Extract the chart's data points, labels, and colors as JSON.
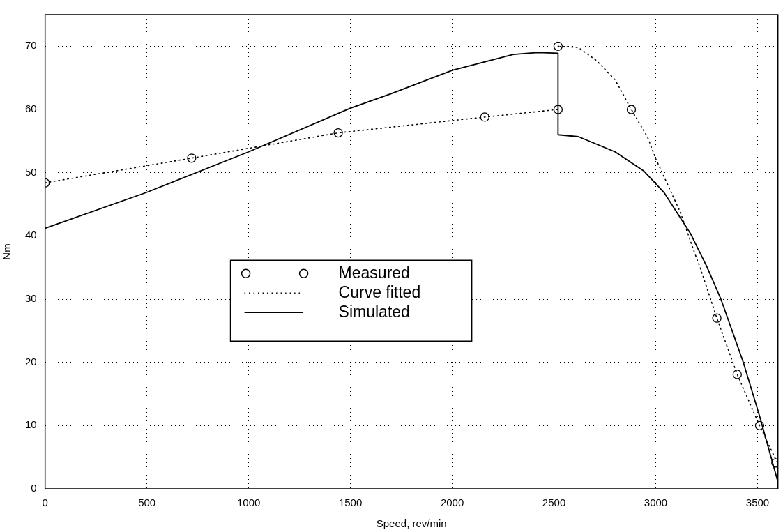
{
  "chart_data": {
    "type": "line",
    "xlabel": "Speed, rev/min",
    "ylabel": "Nm",
    "xlim": [
      0,
      3600
    ],
    "ylim": [
      0,
      75
    ],
    "xticks": [
      0,
      500,
      1000,
      1500,
      2000,
      2500,
      3000,
      3500
    ],
    "yticks": [
      0,
      10,
      20,
      30,
      40,
      50,
      60,
      70
    ],
    "grid": true,
    "legend": "center",
    "series": [
      {
        "name": "Measured",
        "type": "scatter",
        "marker": "circle",
        "color": "#000000",
        "x": [
          0,
          720,
          1440,
          2160,
          2520,
          2520,
          2880,
          3300,
          3400,
          3510,
          3590
        ],
        "values": [
          48.4,
          52.3,
          56.3,
          58.8,
          60,
          70,
          60,
          27,
          18.1,
          10,
          4.1
        ]
      },
      {
        "name": "Curve fitted",
        "type": "line",
        "marker": "none",
        "line_style": "dotted",
        "color": "#000000",
        "x": [
          0,
          720,
          1440,
          2160,
          2520,
          null,
          2520,
          2620,
          2710,
          2800,
          2880,
          2960,
          3000,
          3050,
          3120,
          3190,
          3220,
          3300,
          3400,
          3510,
          3590,
          3600
        ],
        "values": [
          48.4,
          52.3,
          56.3,
          58.8,
          60,
          null,
          70,
          69.8,
          67.7,
          64.7,
          60,
          55.6,
          52.2,
          48.7,
          43.8,
          37.4,
          34.8,
          27,
          18.1,
          10,
          4.6,
          4
        ]
      },
      {
        "name": "Simulated",
        "type": "line",
        "marker": "none",
        "line_style": "solid",
        "color": "#000000",
        "x": [
          0,
          500,
          1000,
          1500,
          1700,
          2000,
          2300,
          2420,
          2520,
          2520,
          2620,
          2800,
          2940,
          3040,
          3170,
          3250,
          3320,
          3430,
          3510,
          3600
        ],
        "values": [
          41.2,
          46.9,
          53.3,
          60.2,
          62.5,
          66.2,
          68.7,
          69,
          68.9,
          56,
          55.7,
          53.3,
          50.3,
          46.9,
          40.4,
          35.2,
          30,
          20,
          11.5,
          1.1
        ]
      }
    ]
  }
}
